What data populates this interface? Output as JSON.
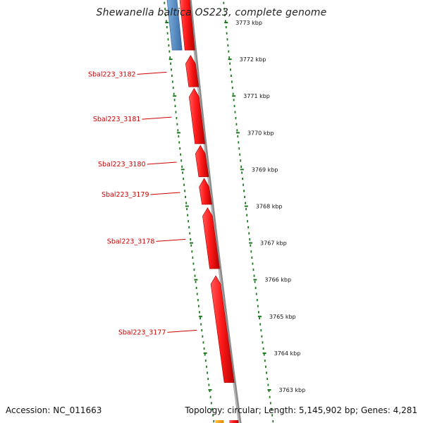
{
  "title": "Shewanella baltica OS223, complete genome",
  "footer": {
    "accession": "Accession: NC_011663",
    "summary": "Topology: circular; Length: 5,145,902 bp; Genes: 4,281"
  },
  "colors": {
    "gene": "#ff1a1a",
    "gene_other_strand": "#4a86c8",
    "gene_orange": "#f5a000",
    "backbone": "#8c8c8c",
    "tick": "#1a7a1a",
    "label": "#cc0000"
  },
  "scale": {
    "unit": "kbp",
    "ticks": [
      {
        "kbp": 3773,
        "label": "3773 kbp"
      },
      {
        "kbp": 3772,
        "label": "3772 kbp"
      },
      {
        "kbp": 3771,
        "label": "3771 kbp"
      },
      {
        "kbp": 3770,
        "label": "3770 kbp"
      },
      {
        "kbp": 3769,
        "label": "3769 kbp"
      },
      {
        "kbp": 3768,
        "label": "3768 kbp"
      },
      {
        "kbp": 3767,
        "label": "3767 kbp"
      },
      {
        "kbp": 3766,
        "label": "3766 kbp"
      },
      {
        "kbp": 3765,
        "label": "3765 kbp"
      },
      {
        "kbp": 3764,
        "label": "3764 kbp"
      },
      {
        "kbp": 3763,
        "label": "3763 kbp"
      }
    ]
  },
  "genes": [
    {
      "name": "Sbal223_3182",
      "start_kbp": 3771.25,
      "end_kbp": 3772.05,
      "strand": "reverse"
    },
    {
      "name": "Sbal223_3181",
      "start_kbp": 3769.7,
      "end_kbp": 3771.15,
      "strand": "reverse"
    },
    {
      "name": "Sbal223_3180",
      "start_kbp": 3768.8,
      "end_kbp": 3769.6,
      "strand": "reverse"
    },
    {
      "name": "Sbal223_3179",
      "start_kbp": 3768.05,
      "end_kbp": 3768.7,
      "strand": "reverse"
    },
    {
      "name": "Sbal223_3178",
      "start_kbp": 3766.3,
      "end_kbp": 3767.9,
      "strand": "reverse"
    },
    {
      "name": "Sbal223_3177",
      "start_kbp": 3763.2,
      "end_kbp": 3766.05,
      "strand": "reverse"
    }
  ]
}
